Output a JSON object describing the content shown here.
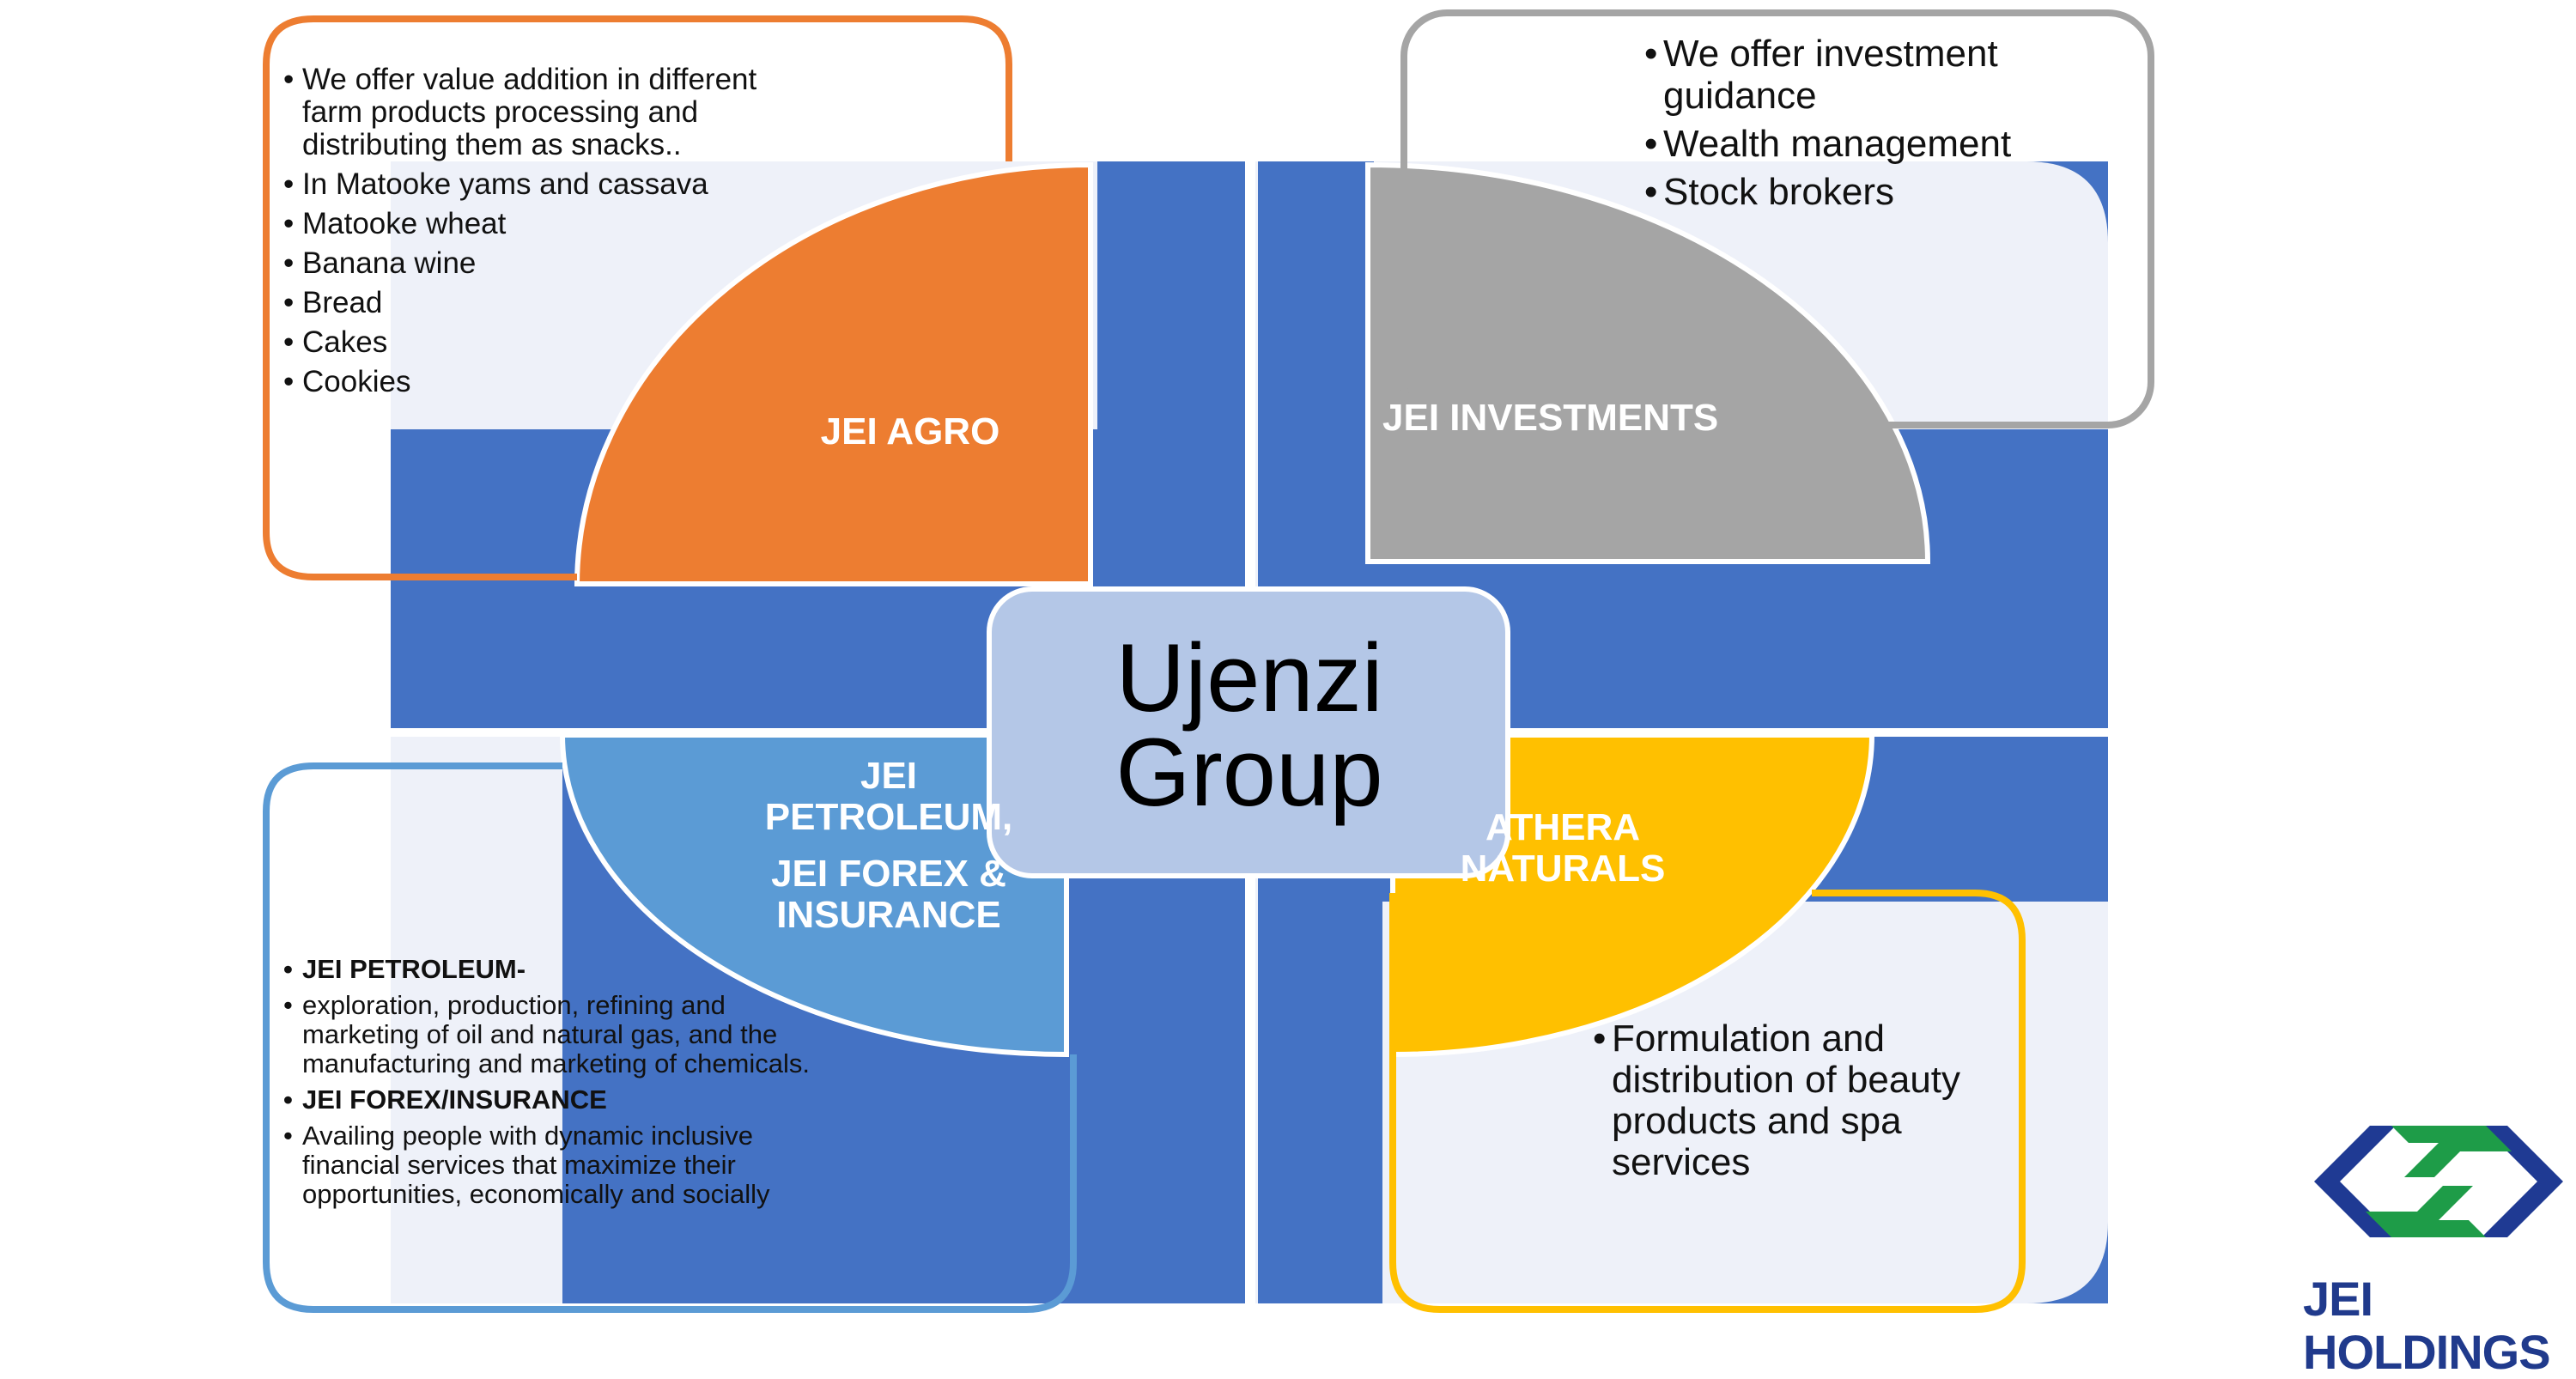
{
  "center": {
    "line1": "Ujenzi",
    "line2": "Group"
  },
  "segments": {
    "agro": {
      "label": "JEI AGRO",
      "color": "#ED7D31"
    },
    "investments": {
      "label": "JEI INVESTMENTS",
      "color": "#A5A5A5"
    },
    "petroleum": {
      "label_line1": "JEI",
      "label_line2": "PETROLEUM,",
      "label_line3": "JEI FOREX &",
      "label_line4": "INSURANCE",
      "color": "#5B9BD5"
    },
    "athera": {
      "label_line1": "ATHERA",
      "label_line2": "NATURALS",
      "color": "#FFC000"
    }
  },
  "colors": {
    "background_blue": "#4472C4",
    "center_box": "#B4C7E7",
    "panel_fill": "#EEF1F9"
  },
  "callouts": {
    "agro": {
      "items": [
        "We offer value addition in different farm products processing  and distributing them as snacks..",
        "In Matooke yams and cassava",
        "Matooke wheat",
        "Banana wine",
        "Bread",
        "Cakes",
        "Cookies"
      ]
    },
    "investments": {
      "items": [
        "We offer investment guidance",
        "Wealth management",
        "Stock brokers"
      ]
    },
    "petroleum": {
      "items": [
        "JEI PETROLEUM-",
        "exploration, production, refining and marketing of oil and natural gas, and the manufacturing and marketing of chemicals.",
        "JEI FOREX/INSURANCE",
        "Availing people with dynamic inclusive financial services that maximize their opportunities, economically and socially"
      ]
    },
    "athera": {
      "items": [
        "Formulation and distribution of beauty products and spa services"
      ]
    }
  },
  "brand": {
    "name": "JEI HOLDINGS",
    "logo_colors": [
      "#1F3A93",
      "#1E9C48"
    ]
  }
}
